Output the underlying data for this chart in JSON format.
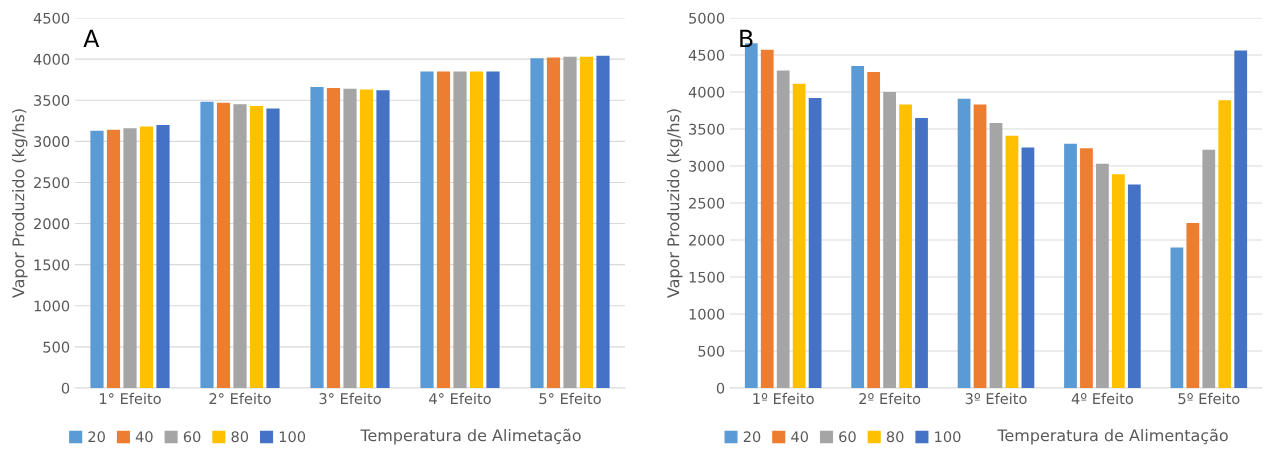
{
  "chart_data": [
    {
      "type": "bar",
      "annotations": [
        "A"
      ],
      "xlabel": "Temperatura de Alimetação",
      "ylabel": "Vapor Produzido (kg/hs)",
      "categories": [
        "1° Efeito",
        "2° Efeito",
        "3° Efeito",
        "4° Efeito",
        "5° Efeito"
      ],
      "series": [
        {
          "name": "20",
          "color": "#5b9bd5",
          "values": [
            3130,
            3480,
            3660,
            3850,
            4010
          ]
        },
        {
          "name": "40",
          "color": "#ed7d31",
          "values": [
            3140,
            3470,
            3650,
            3850,
            4020
          ]
        },
        {
          "name": "60",
          "color": "#a5a5a5",
          "values": [
            3160,
            3450,
            3640,
            3850,
            4030
          ]
        },
        {
          "name": "80",
          "color": "#ffc000",
          "values": [
            3180,
            3430,
            3630,
            3850,
            4030
          ]
        },
        {
          "name": "100",
          "color": "#4472c4",
          "values": [
            3200,
            3400,
            3620,
            3850,
            4040
          ]
        }
      ],
      "ylim": [
        0,
        4500
      ],
      "yticks": [
        0,
        500,
        1000,
        1500,
        2000,
        2500,
        3000,
        3500,
        4000,
        4500
      ],
      "grid": "y",
      "legend": "bottom left"
    },
    {
      "type": "bar",
      "annotations": [
        "B"
      ],
      "xlabel": "Temperatura de Alimentação",
      "ylabel": "Vapor Produzido (kg/hs)",
      "categories": [
        "1º Efeito",
        "2º Efeito",
        "3º Efeito",
        "4º Efeito",
        "5º Efeito"
      ],
      "series": [
        {
          "name": "20",
          "color": "#5b9bd5",
          "values": [
            4660,
            4350,
            3910,
            3300,
            1900
          ]
        },
        {
          "name": "40",
          "color": "#ed7d31",
          "values": [
            4570,
            4270,
            3830,
            3240,
            2230
          ]
        },
        {
          "name": "60",
          "color": "#a5a5a5",
          "values": [
            4290,
            4000,
            3580,
            3030,
            3220
          ]
        },
        {
          "name": "80",
          "color": "#ffc000",
          "values": [
            4110,
            3830,
            3410,
            2890,
            3890
          ]
        },
        {
          "name": "100",
          "color": "#4472c4",
          "values": [
            3920,
            3650,
            3250,
            2750,
            4560
          ]
        }
      ],
      "ylim": [
        0,
        5000
      ],
      "yticks": [
        0,
        500,
        1000,
        1500,
        2000,
        2500,
        3000,
        3500,
        4000,
        4500,
        5000
      ],
      "grid": "y",
      "legend": "bottom left"
    }
  ]
}
